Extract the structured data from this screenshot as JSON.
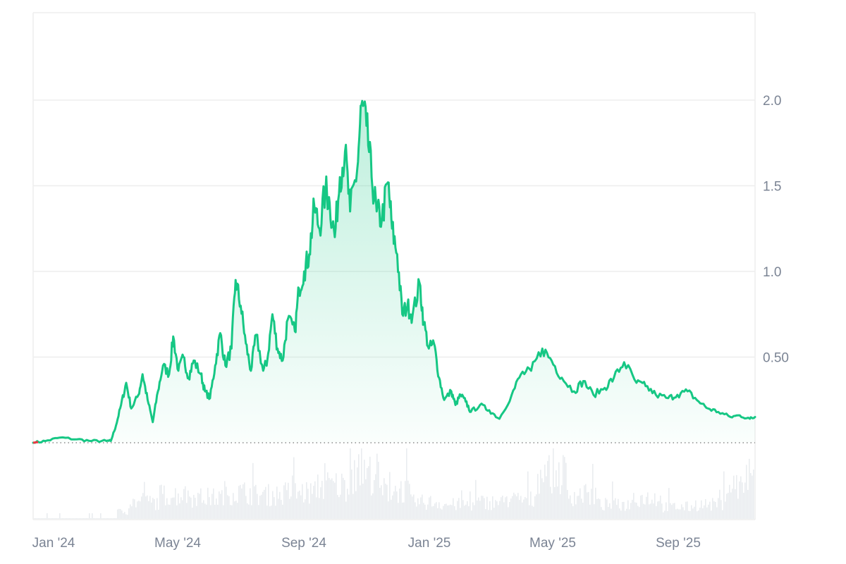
{
  "chart_data": {
    "type": "area",
    "title": "",
    "xlabel": "",
    "ylabel": "",
    "ylim": [
      0,
      2.5
    ],
    "grid": "horizontal",
    "legend": "none",
    "colors": {
      "line": "#16c784",
      "fill": "#16c784",
      "grid": "#eeeeee",
      "volume": "#e9ecef",
      "baseline_dots": "#8a8a8a",
      "axis_text": "#7b8494",
      "start_segment": "#ea3943"
    },
    "x_ticks": [
      "Jan '24",
      "May '24",
      "Sep '24",
      "Jan '25",
      "May '25",
      "Sep '25"
    ],
    "y_ticks": [
      "0.50",
      "1.0",
      "1.5",
      "2.0"
    ],
    "baseline_value": 0.0,
    "series": [
      {
        "name": "price",
        "x": [
          "2023-12-20",
          "2024-01-01",
          "2024-01-15",
          "2024-02-01",
          "2024-02-15",
          "2024-03-01",
          "2024-03-05",
          "2024-03-10",
          "2024-03-15",
          "2024-03-20",
          "2024-03-25",
          "2024-04-01",
          "2024-04-05",
          "2024-04-10",
          "2024-04-15",
          "2024-04-20",
          "2024-04-25",
          "2024-05-01",
          "2024-05-05",
          "2024-05-10",
          "2024-05-15",
          "2024-05-20",
          "2024-05-25",
          "2024-06-01",
          "2024-06-05",
          "2024-06-10",
          "2024-06-15",
          "2024-06-20",
          "2024-06-25",
          "2024-07-01",
          "2024-07-05",
          "2024-07-10",
          "2024-07-15",
          "2024-07-20",
          "2024-07-25",
          "2024-08-01",
          "2024-08-05",
          "2024-08-10",
          "2024-08-15",
          "2024-08-20",
          "2024-08-25",
          "2024-09-01",
          "2024-09-05",
          "2024-09-10",
          "2024-09-15",
          "2024-09-20",
          "2024-09-25",
          "2024-10-01",
          "2024-10-05",
          "2024-10-10",
          "2024-10-15",
          "2024-10-20",
          "2024-10-25",
          "2024-11-01",
          "2024-11-05",
          "2024-11-10",
          "2024-11-15",
          "2024-11-20",
          "2024-11-25",
          "2024-12-01",
          "2024-12-05",
          "2024-12-10",
          "2024-12-15",
          "2024-12-20",
          "2024-12-25",
          "2025-01-01",
          "2025-01-05",
          "2025-01-10",
          "2025-01-15",
          "2025-01-20",
          "2025-01-25",
          "2025-02-01",
          "2025-02-05",
          "2025-02-10",
          "2025-02-15",
          "2025-02-20",
          "2025-03-01",
          "2025-03-10",
          "2025-03-20",
          "2025-04-01",
          "2025-04-10",
          "2025-04-20",
          "2025-05-01",
          "2025-05-10",
          "2025-05-20",
          "2025-06-01",
          "2025-06-10",
          "2025-06-20",
          "2025-07-01",
          "2025-07-10",
          "2025-07-20",
          "2025-08-01",
          "2025-08-10",
          "2025-08-20",
          "2025-09-01",
          "2025-09-10",
          "2025-09-20",
          "2025-10-01",
          "2025-10-10",
          "2025-10-20",
          "2025-11-01",
          "2025-11-10",
          "2025-11-20",
          "2025-11-25"
        ],
        "values": [
          0.0,
          0.01,
          0.03,
          0.02,
          0.01,
          0.01,
          0.01,
          0.1,
          0.22,
          0.35,
          0.2,
          0.28,
          0.4,
          0.25,
          0.12,
          0.3,
          0.45,
          0.4,
          0.62,
          0.42,
          0.5,
          0.38,
          0.48,
          0.4,
          0.3,
          0.26,
          0.45,
          0.64,
          0.45,
          0.55,
          0.95,
          0.8,
          0.58,
          0.42,
          0.63,
          0.42,
          0.48,
          0.75,
          0.55,
          0.48,
          0.72,
          0.65,
          0.9,
          1.0,
          1.1,
          1.38,
          1.25,
          1.48,
          1.4,
          1.2,
          1.55,
          1.7,
          1.35,
          1.6,
          1.97,
          1.85,
          1.55,
          1.35,
          1.3,
          1.52,
          1.25,
          1.1,
          0.75,
          0.8,
          0.74,
          0.93,
          0.7,
          0.55,
          0.58,
          0.38,
          0.25,
          0.3,
          0.22,
          0.28,
          0.24,
          0.18,
          0.22,
          0.19,
          0.14,
          0.28,
          0.4,
          0.42,
          0.55,
          0.48,
          0.38,
          0.3,
          0.36,
          0.28,
          0.32,
          0.38,
          0.47,
          0.35,
          0.33,
          0.28,
          0.26,
          0.28,
          0.3,
          0.24,
          0.2,
          0.18,
          0.15,
          0.16,
          0.14,
          0.15
        ]
      },
      {
        "name": "volume",
        "x": [
          "2024-01",
          "2024-02",
          "2024-03",
          "2024-04",
          "2024-05",
          "2024-06",
          "2024-07",
          "2024-08",
          "2024-09",
          "2024-10",
          "2024-11",
          "2024-12",
          "2025-01",
          "2025-02",
          "2025-03",
          "2025-04",
          "2025-05",
          "2025-06",
          "2025-07",
          "2025-08",
          "2025-09",
          "2025-10",
          "2025-11"
        ],
        "values": [
          0.05,
          0.02,
          0.15,
          0.35,
          0.5,
          0.45,
          0.55,
          0.5,
          0.55,
          0.7,
          0.95,
          0.6,
          0.35,
          0.3,
          0.35,
          0.4,
          0.95,
          0.5,
          0.3,
          0.45,
          0.25,
          0.3,
          0.7
        ]
      }
    ]
  }
}
